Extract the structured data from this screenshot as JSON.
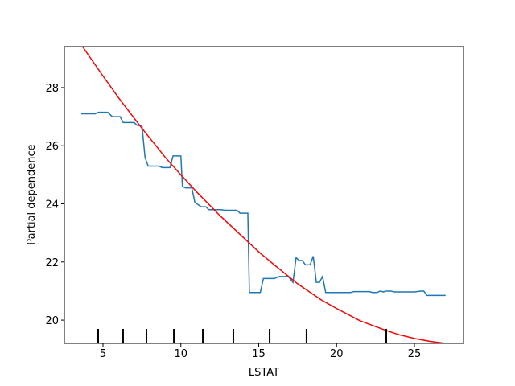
{
  "chart_data": {
    "type": "line",
    "x_label": "LSTAT",
    "y_label": "Partial dependence",
    "xlim": [
      2.52,
      28.15
    ],
    "ylim": [
      19.2,
      29.41
    ],
    "xticks": [
      5,
      10,
      15,
      20,
      25
    ],
    "yticks": [
      20,
      22,
      24,
      26,
      28
    ],
    "grid": false,
    "series": [
      {
        "color": "#1f77b4",
        "x": [
          3.6,
          4.5,
          4.7,
          5.3,
          5.6,
          6.1,
          6.3,
          7.0,
          7.2,
          7.5,
          7.7,
          7.9,
          8.6,
          8.8,
          9.3,
          9.5,
          10.0,
          10.1,
          10.3,
          10.7,
          10.9,
          11.3,
          11.6,
          11.8,
          12.6,
          12.8,
          13.6,
          13.8,
          14.3,
          14.4,
          15.1,
          15.3,
          16.0,
          16.3,
          16.9,
          17.2,
          17.4,
          17.6,
          17.8,
          18.0,
          18.3,
          18.5,
          18.7,
          18.9,
          19.1,
          19.3,
          20.9,
          21.1,
          22.1,
          22.3,
          22.6,
          22.8,
          23.0,
          23.2,
          23.5,
          23.7,
          25.0,
          25.4,
          25.6,
          25.8,
          27.0
        ],
        "values": [
          27.1,
          27.1,
          27.15,
          27.15,
          27.0,
          27.0,
          26.8,
          26.8,
          26.7,
          26.7,
          25.6,
          25.3,
          25.3,
          25.25,
          25.25,
          25.65,
          25.65,
          24.6,
          24.55,
          24.55,
          24.05,
          23.9,
          23.9,
          23.8,
          23.8,
          23.78,
          23.78,
          23.68,
          23.68,
          20.95,
          20.95,
          21.43,
          21.43,
          21.5,
          21.5,
          21.3,
          22.15,
          22.05,
          22.05,
          21.9,
          21.9,
          22.2,
          21.3,
          21.3,
          21.5,
          20.95,
          20.95,
          20.98,
          20.98,
          20.95,
          20.95,
          21.0,
          20.97,
          21.0,
          21.0,
          20.97,
          20.97,
          21.0,
          21.0,
          20.85,
          20.85
        ]
      },
      {
        "color": "red",
        "x": [
          3.7,
          5,
          6,
          7.5,
          9,
          10,
          11,
          12.5,
          14,
          15,
          16,
          17.5,
          19,
          20,
          21.5,
          23,
          24,
          25,
          26,
          27
        ],
        "values": [
          29.4,
          28.4,
          27.65,
          26.6,
          25.6,
          25.0,
          24.42,
          23.6,
          22.85,
          22.35,
          21.9,
          21.25,
          20.7,
          20.4,
          19.98,
          19.68,
          19.5,
          19.37,
          19.27,
          19.2
        ]
      }
    ],
    "deciles": [
      4.69,
      6.29,
      7.79,
      9.55,
      11.41,
      13.37,
      15.7,
      18.07,
      23.19
    ]
  }
}
